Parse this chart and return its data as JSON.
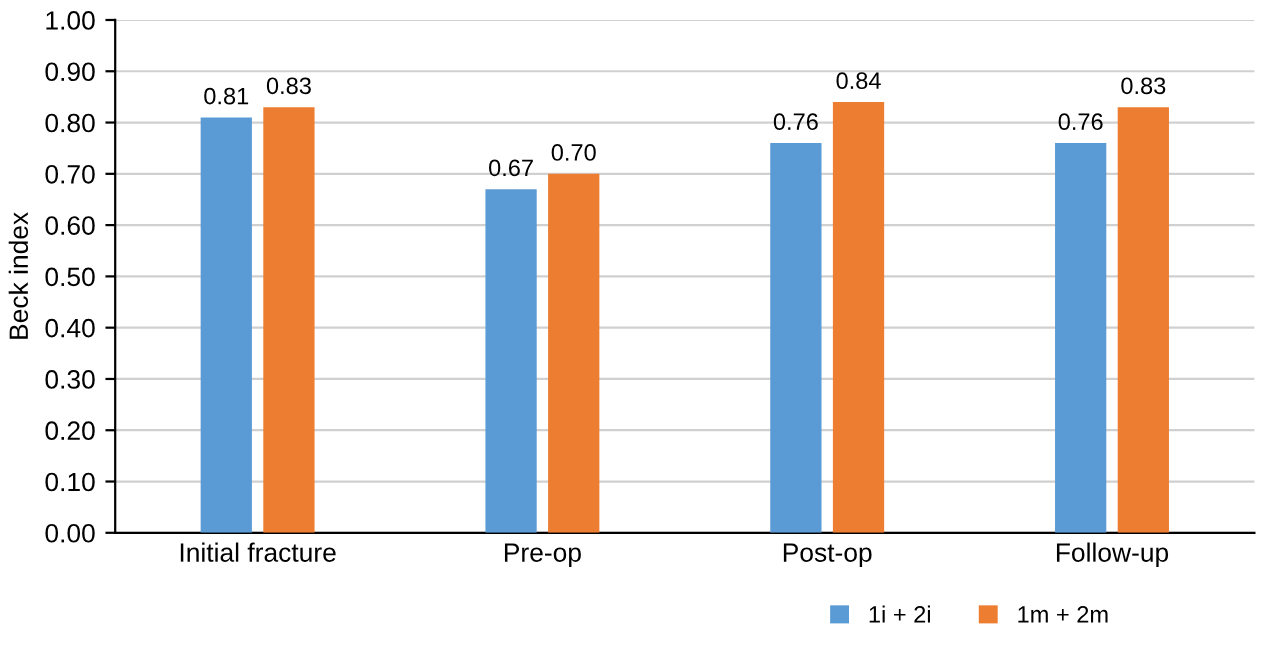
{
  "chart_data": {
    "type": "bar",
    "ylabel": "Beck index",
    "categories": [
      "Initial fracture",
      "Pre-op",
      "Post-op",
      "Follow-up"
    ],
    "series": [
      {
        "name": "1i + 2i",
        "color": "#5b9bd5",
        "values": [
          0.81,
          0.67,
          0.76,
          0.76
        ],
        "value_labels": [
          "0.81",
          "0.67",
          "0.76",
          "0.76"
        ]
      },
      {
        "name": "1m + 2m",
        "color": "#ed7d31",
        "values": [
          0.83,
          0.7,
          0.84,
          0.83
        ],
        "value_labels": [
          "0.83",
          "0.70",
          "0.84",
          "0.83"
        ]
      }
    ],
    "ylim": [
      0,
      1
    ],
    "yticks": [
      {
        "value": 0,
        "label": "0.00"
      },
      {
        "value": 0.1,
        "label": "0.10"
      },
      {
        "value": 0.2,
        "label": "0.20"
      },
      {
        "value": 0.3,
        "label": "0.30"
      },
      {
        "value": 0.4,
        "label": "0.40"
      },
      {
        "value": 0.5,
        "label": "0.50"
      },
      {
        "value": 0.6,
        "label": "0.60"
      },
      {
        "value": 0.7,
        "label": "0.70"
      },
      {
        "value": 0.8,
        "label": "0.80"
      },
      {
        "value": 0.9,
        "label": "0.90"
      },
      {
        "value": 1.0,
        "label": "1.00"
      }
    ],
    "grid": "y",
    "legend": "bottom"
  }
}
